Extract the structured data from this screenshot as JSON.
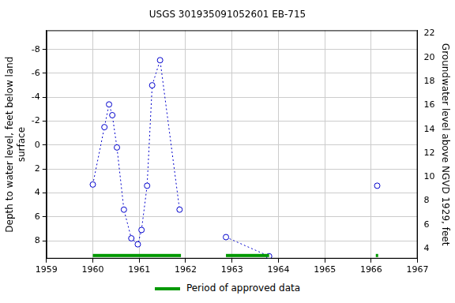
{
  "chart_data": {
    "type": "scatter",
    "title": "USGS 301935091052601 EB-715",
    "x_label": "",
    "y_label": [
      "Depth to water level, feet below land",
      "surface"
    ],
    "y2_label": "Groundwater level above NGVD 1929, feet",
    "xlim": [
      1959,
      1967
    ],
    "xticks": [
      1959,
      1960,
      1961,
      1962,
      1963,
      1964,
      1965,
      1966,
      1967
    ],
    "ylim": [
      9.5,
      -9.6
    ],
    "yticks": [
      -8,
      -6,
      -4,
      -2,
      0,
      2,
      4,
      6,
      8
    ],
    "y2lim": [
      3.17,
      22.27
    ],
    "y2ticks": [
      4,
      6,
      8,
      10,
      12,
      14,
      16,
      18,
      20,
      22
    ],
    "grid": true,
    "series": [
      {
        "color": "#0000cc",
        "marker": "circle",
        "line_style": "dotted",
        "x": [
          1960.0,
          1960.25,
          1960.35,
          1960.42,
          1960.52,
          1960.67,
          1960.83,
          1960.97,
          1961.05,
          1961.17,
          1961.28,
          1961.45,
          1961.87
        ],
        "values": [
          3.3,
          -1.5,
          -3.4,
          -2.5,
          0.2,
          5.4,
          7.8,
          8.3,
          7.1,
          3.4,
          -5.0,
          -7.1,
          5.4
        ]
      },
      {
        "color": "#0000cc",
        "marker": "circle",
        "line_style": "dotted",
        "x": [
          1962.87,
          1963.8
        ],
        "values": [
          7.7,
          9.3
        ]
      },
      {
        "color": "#0000cc",
        "marker": "circle",
        "line_style": "dotted",
        "x": [
          1966.13
        ],
        "values": [
          3.4
        ]
      }
    ],
    "approved_periods": {
      "name": "Period of approved data",
      "color": "#009900",
      "ranges": [
        [
          1960.0,
          1961.9
        ],
        [
          1962.87,
          1963.8
        ],
        [
          1966.1,
          1966.15
        ]
      ]
    }
  }
}
